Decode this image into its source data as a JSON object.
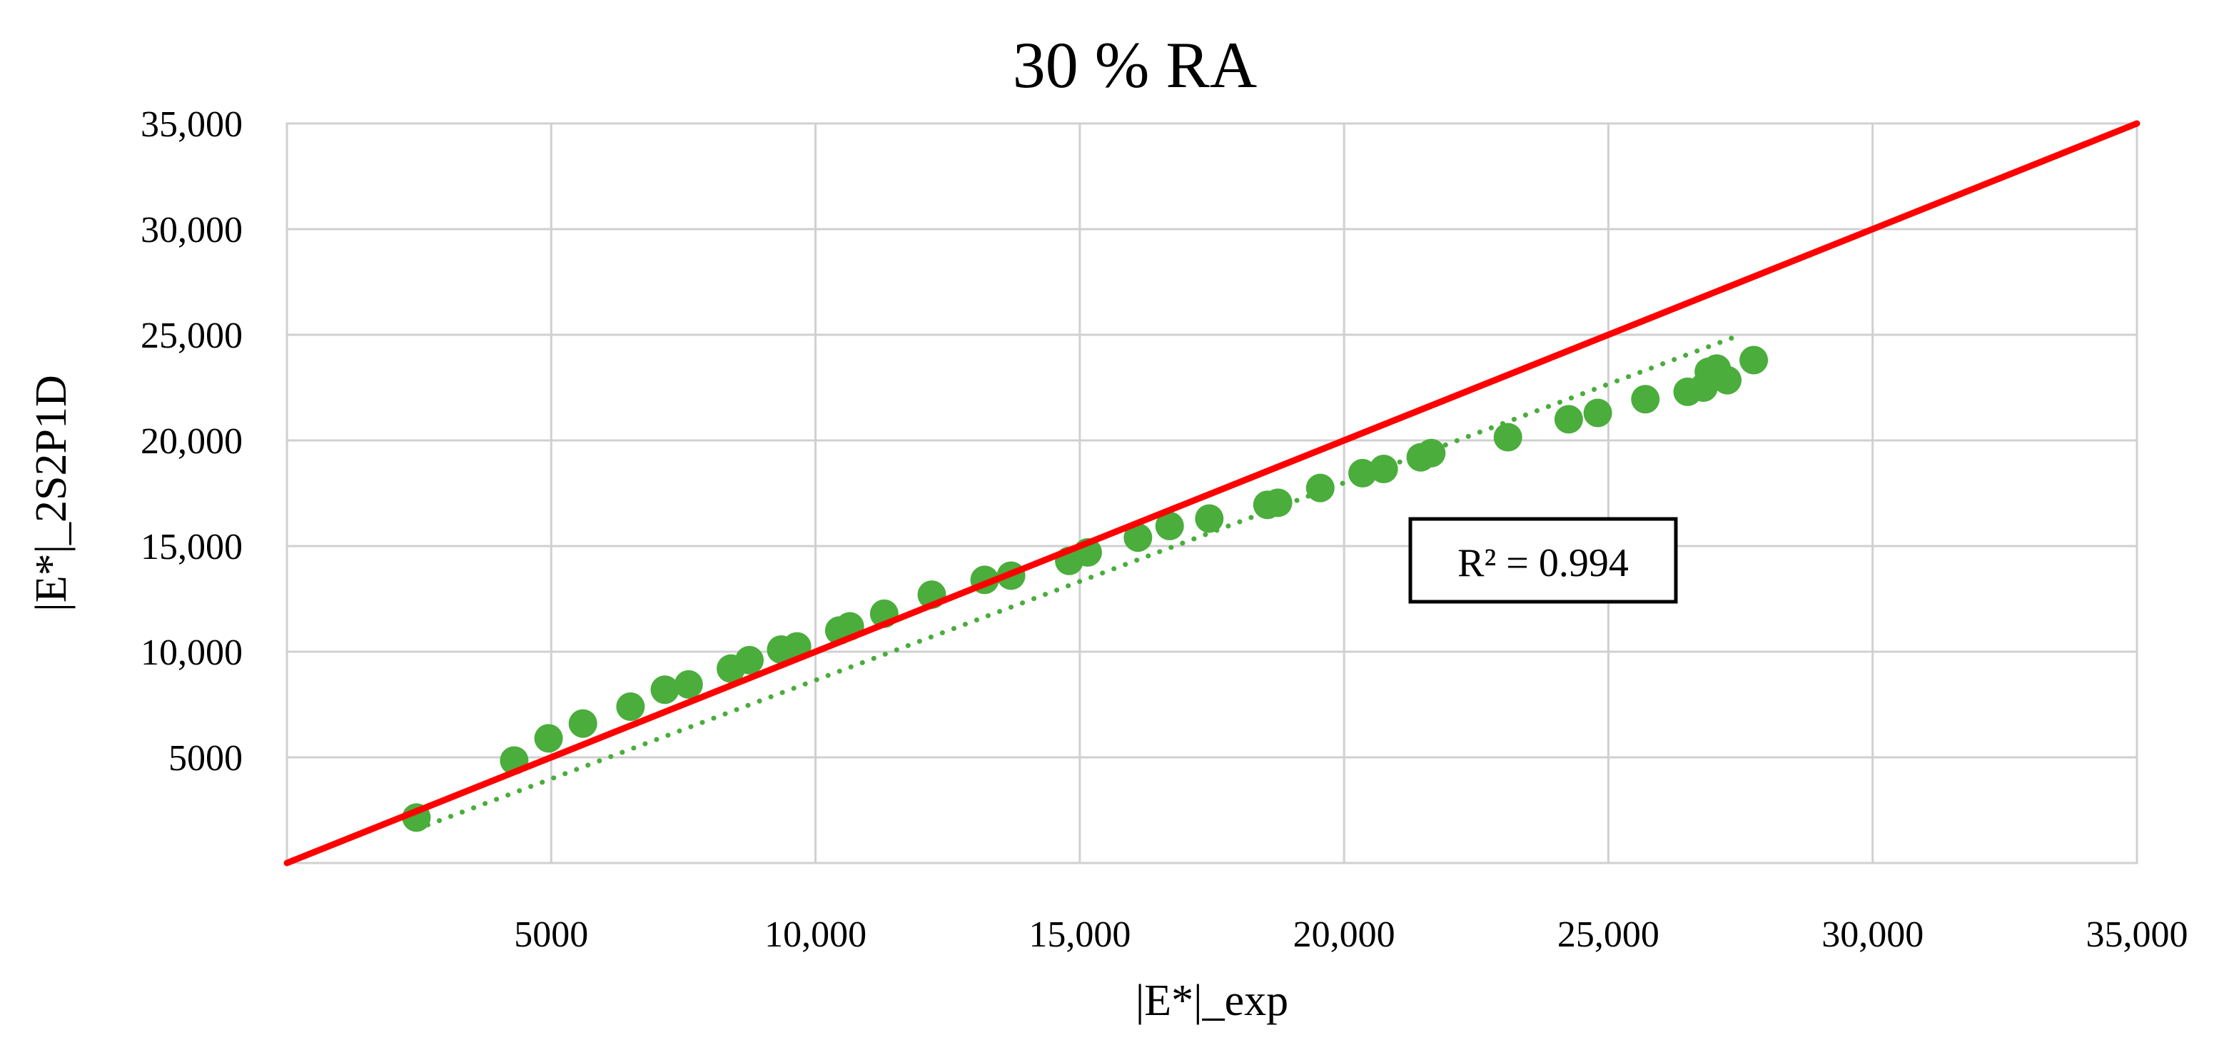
{
  "chart_data": {
    "type": "scatter",
    "title": "30 % RA",
    "xlabel": "|E*|_exp",
    "ylabel": "|E*|_2S2P1D",
    "xlim": [
      0,
      35000
    ],
    "ylim": [
      0,
      35000
    ],
    "x_ticks": [
      {
        "value": 5000,
        "label": "5000"
      },
      {
        "value": 10000,
        "label": "10,000"
      },
      {
        "value": 15000,
        "label": "15,000"
      },
      {
        "value": 20000,
        "label": "20,000"
      },
      {
        "value": 25000,
        "label": "25,000"
      },
      {
        "value": 30000,
        "label": "30,000"
      },
      {
        "value": 35000,
        "label": "35,000"
      }
    ],
    "y_ticks": [
      {
        "value": 5000,
        "label": "5000"
      },
      {
        "value": 10000,
        "label": "10,000"
      },
      {
        "value": 15000,
        "label": "15,000"
      },
      {
        "value": 20000,
        "label": "20,000"
      },
      {
        "value": 25000,
        "label": "25,000"
      },
      {
        "value": 30000,
        "label": "30,000"
      },
      {
        "value": 35000,
        "label": "35,000"
      }
    ],
    "grid": true,
    "points": {
      "color": "#4aad3c",
      "x": [
        2450,
        4300,
        4950,
        5600,
        6500,
        7150,
        7600,
        8400,
        8750,
        9350,
        9650,
        10450,
        10650,
        11300,
        12200,
        13200,
        13700,
        14800,
        15150,
        16100,
        16700,
        17450,
        18550,
        18750,
        19550,
        20350,
        20750,
        21450,
        21650,
        23100,
        24250,
        24800,
        25700,
        26500,
        26800,
        26900,
        27050,
        27250,
        27750
      ],
      "y": [
        2150,
        4850,
        5900,
        6600,
        7400,
        8200,
        8450,
        9200,
        9600,
        10100,
        10250,
        11000,
        11200,
        11800,
        12700,
        13400,
        13600,
        14300,
        14700,
        15400,
        15950,
        16300,
        16950,
        17050,
        17750,
        18450,
        18650,
        19200,
        19400,
        20150,
        21000,
        21300,
        21950,
        22300,
        22500,
        23250,
        23400,
        22850,
        23800
      ]
    },
    "trendline": {
      "style": "dotted",
      "color": "#4aad3c",
      "x": [
        2450,
        27500
      ],
      "y": [
        1600,
        25000
      ]
    },
    "equality_line": {
      "color": "#ff0000",
      "x": [
        0,
        35000
      ],
      "y": [
        0,
        35000
      ]
    },
    "annotation": {
      "text": "R² = 0.994"
    }
  }
}
